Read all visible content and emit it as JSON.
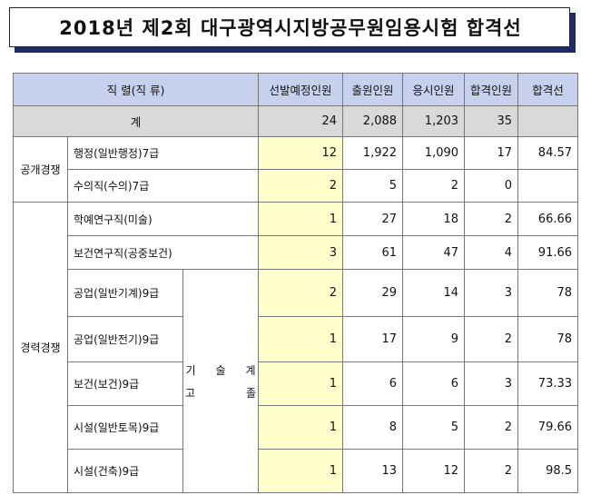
{
  "title": "2018년 제2회 대구광역시지방공무원임용시험 합격선",
  "headers": {
    "jobs": "직 렬(직 류)",
    "planned": "선발예정인원",
    "applicants": "출원인원",
    "examinees": "응시인원",
    "passers": "합격인원",
    "cutoff": "합격선"
  },
  "total": {
    "label": "계",
    "planned": "24",
    "applicants": "2,088",
    "examinees": "1,203",
    "passers": "35",
    "cutoff": ""
  },
  "groups": {
    "open": "공개경쟁",
    "career": "경력경쟁"
  },
  "tech_label": {
    "line1": [
      "기",
      "술",
      "계"
    ],
    "line2": [
      "고",
      "졸"
    ]
  },
  "rows": [
    {
      "job": "행정(일반행정)7급",
      "planned": "12",
      "applicants": "1,922",
      "examinees": "1,090",
      "passers": "17",
      "cutoff": "84.57"
    },
    {
      "job": "수의직(수의)7급",
      "planned": "2",
      "applicants": "5",
      "examinees": "2",
      "passers": "0",
      "cutoff": ""
    },
    {
      "job": "학예연구직(미술)",
      "planned": "1",
      "applicants": "27",
      "examinees": "18",
      "passers": "2",
      "cutoff": "66.66"
    },
    {
      "job": "보건연구직(공중보건)",
      "planned": "3",
      "applicants": "61",
      "examinees": "47",
      "passers": "4",
      "cutoff": "91.66"
    },
    {
      "job": "공업(일반기계)9급",
      "planned": "2",
      "applicants": "29",
      "examinees": "14",
      "passers": "3",
      "cutoff": "78"
    },
    {
      "job": "공업(일반전기)9급",
      "planned": "1",
      "applicants": "17",
      "examinees": "9",
      "passers": "2",
      "cutoff": "78"
    },
    {
      "job": "보건(보건)9급",
      "planned": "1",
      "applicants": "6",
      "examinees": "6",
      "passers": "3",
      "cutoff": "73.33"
    },
    {
      "job": "시설(일반토목)9급",
      "planned": "1",
      "applicants": "8",
      "examinees": "5",
      "passers": "2",
      "cutoff": "79.66"
    },
    {
      "job": "시설(건축)9급",
      "planned": "1",
      "applicants": "13",
      "examinees": "12",
      "passers": "2",
      "cutoff": "98.5"
    }
  ]
}
